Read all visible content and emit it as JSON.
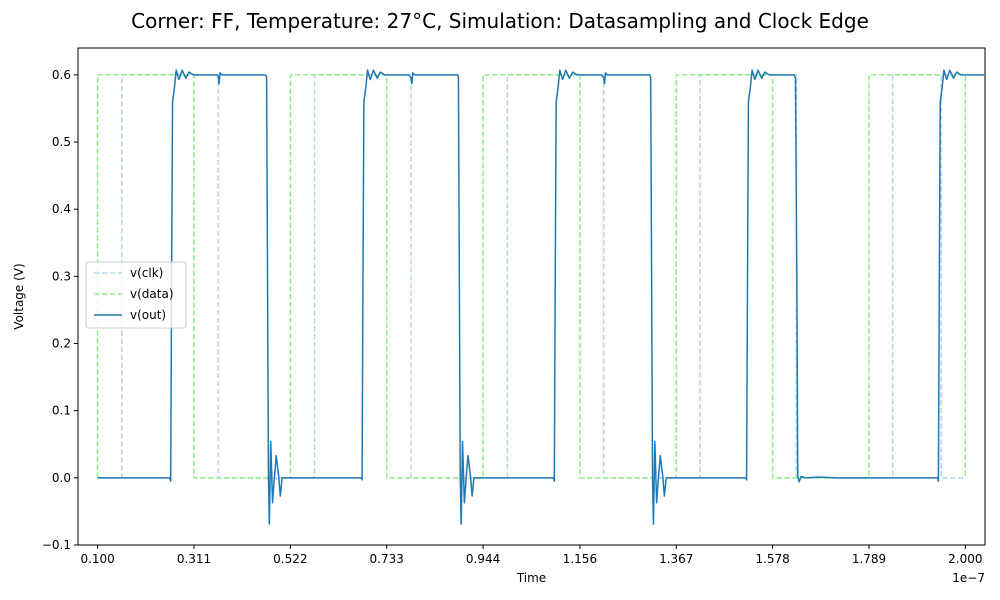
{
  "chart_data": {
    "type": "line",
    "title": "Corner: FF, Temperature: 27°C, Simulation: Datasampling and Clock Edge",
    "xlabel": "Time",
    "ylabel": "Voltage (V)",
    "x_offset_label": "1e−7",
    "xlim": [
      0.057,
      2.043
    ],
    "ylim": [
      -0.1,
      0.64
    ],
    "x_ticks": [
      0.1,
      0.311,
      0.522,
      0.733,
      0.944,
      1.156,
      1.367,
      1.578,
      1.789,
      2.0
    ],
    "x_tick_labels": [
      "0.100",
      "0.311",
      "0.522",
      "0.733",
      "0.944",
      "1.156",
      "1.367",
      "1.578",
      "1.789",
      "2.000"
    ],
    "y_ticks": [
      -0.1,
      0.0,
      0.1,
      0.2,
      0.3,
      0.4,
      0.5,
      0.6
    ],
    "y_tick_labels": [
      "−0.1",
      "0.0",
      "0.1",
      "0.2",
      "0.3",
      "0.4",
      "0.5",
      "0.6"
    ],
    "legend_position": "center-left",
    "series": [
      {
        "name": "v(clk)",
        "color": "#add8e6",
        "style": "dashed",
        "points": [
          [
            0.1,
            0.0
          ],
          [
            0.153,
            0.0
          ],
          [
            0.153,
            0.6
          ],
          [
            0.364,
            0.6
          ],
          [
            0.364,
            0.0
          ],
          [
            0.575,
            0.0
          ],
          [
            0.575,
            0.6
          ],
          [
            0.786,
            0.6
          ],
          [
            0.786,
            0.0
          ],
          [
            0.997,
            0.0
          ],
          [
            0.997,
            0.6
          ],
          [
            1.208,
            0.6
          ],
          [
            1.208,
            0.0
          ],
          [
            1.419,
            0.0
          ],
          [
            1.419,
            0.6
          ],
          [
            1.63,
            0.6
          ],
          [
            1.63,
            0.0
          ],
          [
            1.841,
            0.0
          ],
          [
            1.841,
            0.6
          ],
          [
            1.947,
            0.6
          ],
          [
            1.947,
            0.0
          ],
          [
            2.0,
            0.0
          ]
        ]
      },
      {
        "name": "v(data)",
        "color": "#90ee90",
        "style": "dashed",
        "points": [
          [
            0.1,
            0.0
          ],
          [
            0.1,
            0.6
          ],
          [
            0.311,
            0.6
          ],
          [
            0.311,
            0.0
          ],
          [
            0.522,
            0.0
          ],
          [
            0.522,
            0.6
          ],
          [
            0.733,
            0.6
          ],
          [
            0.733,
            0.0
          ],
          [
            0.944,
            0.0
          ],
          [
            0.944,
            0.6
          ],
          [
            1.156,
            0.6
          ],
          [
            1.156,
            0.0
          ],
          [
            1.367,
            0.0
          ],
          [
            1.367,
            0.6
          ],
          [
            1.578,
            0.6
          ],
          [
            1.578,
            0.0
          ],
          [
            1.789,
            0.0
          ],
          [
            1.789,
            0.6
          ],
          [
            2.0,
            0.6
          ],
          [
            2.0,
            0.0
          ]
        ]
      },
      {
        "name": "v(out)",
        "color": "#1f77b4",
        "style": "solid",
        "points": [
          [
            0.1,
            0.0
          ],
          [
            0.258,
            0.0
          ],
          [
            0.26,
            -0.005
          ],
          [
            0.262,
            0.3
          ],
          [
            0.264,
            0.56
          ],
          [
            0.268,
            0.58
          ],
          [
            0.272,
            0.607
          ],
          [
            0.278,
            0.593
          ],
          [
            0.285,
            0.607
          ],
          [
            0.293,
            0.595
          ],
          [
            0.3,
            0.604
          ],
          [
            0.31,
            0.6
          ],
          [
            0.36,
            0.6
          ],
          [
            0.364,
            0.598
          ],
          [
            0.366,
            0.587
          ],
          [
            0.368,
            0.603
          ],
          [
            0.372,
            0.6
          ],
          [
            0.467,
            0.6
          ],
          [
            0.47,
            0.597
          ],
          [
            0.472,
            0.3
          ],
          [
            0.474,
            0.0
          ],
          [
            0.476,
            -0.069
          ],
          [
            0.479,
            0.054
          ],
          [
            0.483,
            -0.037
          ],
          [
            0.487,
            0.0
          ],
          [
            0.491,
            0.033
          ],
          [
            0.496,
            0.005
          ],
          [
            0.5,
            -0.027
          ],
          [
            0.504,
            0.0
          ],
          [
            0.52,
            0.0
          ],
          [
            0.677,
            0.0
          ],
          [
            0.679,
            -0.003
          ],
          [
            0.681,
            0.3
          ],
          [
            0.683,
            0.56
          ],
          [
            0.687,
            0.58
          ],
          [
            0.691,
            0.607
          ],
          [
            0.697,
            0.593
          ],
          [
            0.704,
            0.607
          ],
          [
            0.712,
            0.595
          ],
          [
            0.719,
            0.604
          ],
          [
            0.729,
            0.6
          ],
          [
            0.781,
            0.6
          ],
          [
            0.786,
            0.596
          ],
          [
            0.788,
            0.587
          ],
          [
            0.79,
            0.603
          ],
          [
            0.794,
            0.6
          ],
          [
            0.888,
            0.6
          ],
          [
            0.89,
            0.596
          ],
          [
            0.892,
            0.3
          ],
          [
            0.894,
            0.0
          ],
          [
            0.896,
            -0.069
          ],
          [
            0.899,
            0.054
          ],
          [
            0.903,
            -0.037
          ],
          [
            0.907,
            0.0
          ],
          [
            0.911,
            0.033
          ],
          [
            0.916,
            0.005
          ],
          [
            0.92,
            -0.027
          ],
          [
            0.924,
            0.0
          ],
          [
            0.94,
            0.0
          ],
          [
            1.098,
            0.0
          ],
          [
            1.1,
            -0.005
          ],
          [
            1.102,
            0.3
          ],
          [
            1.104,
            0.56
          ],
          [
            1.108,
            0.58
          ],
          [
            1.112,
            0.607
          ],
          [
            1.118,
            0.593
          ],
          [
            1.125,
            0.607
          ],
          [
            1.133,
            0.595
          ],
          [
            1.14,
            0.604
          ],
          [
            1.15,
            0.6
          ],
          [
            1.203,
            0.6
          ],
          [
            1.208,
            0.596
          ],
          [
            1.21,
            0.587
          ],
          [
            1.212,
            0.603
          ],
          [
            1.216,
            0.6
          ],
          [
            1.309,
            0.6
          ],
          [
            1.311,
            0.596
          ],
          [
            1.313,
            0.3
          ],
          [
            1.315,
            0.0
          ],
          [
            1.317,
            -0.069
          ],
          [
            1.32,
            0.054
          ],
          [
            1.324,
            -0.037
          ],
          [
            1.328,
            0.0
          ],
          [
            1.332,
            0.033
          ],
          [
            1.337,
            0.005
          ],
          [
            1.341,
            -0.027
          ],
          [
            1.345,
            0.0
          ],
          [
            1.36,
            0.0
          ],
          [
            1.519,
            0.0
          ],
          [
            1.521,
            -0.003
          ],
          [
            1.523,
            0.3
          ],
          [
            1.525,
            0.56
          ],
          [
            1.529,
            0.58
          ],
          [
            1.533,
            0.607
          ],
          [
            1.539,
            0.593
          ],
          [
            1.546,
            0.607
          ],
          [
            1.554,
            0.595
          ],
          [
            1.561,
            0.604
          ],
          [
            1.571,
            0.6
          ],
          [
            1.624,
            0.6
          ],
          [
            1.628,
            0.596
          ],
          [
            1.631,
            0.3
          ],
          [
            1.633,
            0.003
          ],
          [
            1.636,
            -0.006
          ],
          [
            1.64,
            0.002
          ],
          [
            1.65,
            0.0
          ],
          [
            1.68,
            0.001
          ],
          [
            1.72,
            0.0
          ],
          [
            1.9,
            0.0
          ],
          [
            1.939,
            0.0
          ],
          [
            1.941,
            -0.005
          ],
          [
            1.943,
            0.3
          ],
          [
            1.945,
            0.56
          ],
          [
            1.949,
            0.58
          ],
          [
            1.953,
            0.607
          ],
          [
            1.959,
            0.593
          ],
          [
            1.966,
            0.607
          ],
          [
            1.974,
            0.595
          ],
          [
            1.981,
            0.604
          ],
          [
            1.991,
            0.6
          ],
          [
            2.045,
            0.6
          ],
          [
            2.049,
            0.587
          ],
          [
            2.051,
            0.603
          ],
          [
            2.055,
            0.6
          ],
          [
            2.09,
            0.601
          ],
          [
            2.1,
            0.598
          ]
        ]
      }
    ]
  }
}
